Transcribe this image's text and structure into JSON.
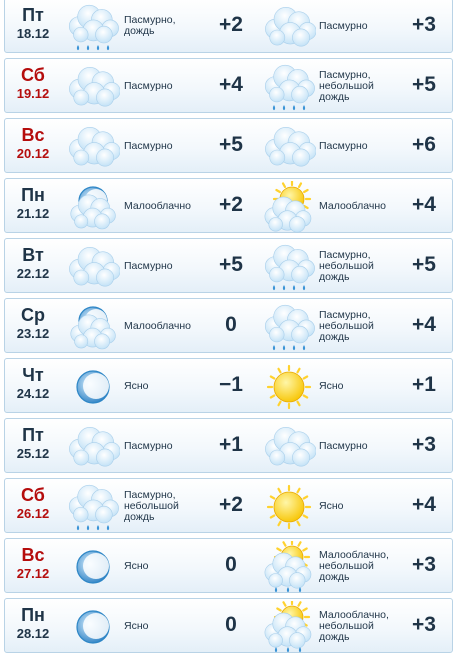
{
  "days": [
    {
      "day": "Пт",
      "date": "18.12",
      "weekend": false,
      "night": {
        "icon": "overcast-rain-icon",
        "desc": "Пасмурно,\nдождь",
        "temp": "+2"
      },
      "daytime": {
        "icon": "overcast-icon",
        "desc": "Пасмурно",
        "temp": "+3"
      }
    },
    {
      "day": "Сб",
      "date": "19.12",
      "weekend": true,
      "night": {
        "icon": "overcast-icon",
        "desc": "Пасмурно",
        "temp": "+4"
      },
      "daytime": {
        "icon": "overcast-rain-icon",
        "desc": "Пасмурно,\nнебольшой\nдождь",
        "temp": "+5"
      }
    },
    {
      "day": "Вс",
      "date": "20.12",
      "weekend": true,
      "night": {
        "icon": "overcast-icon",
        "desc": "Пасмурно",
        "temp": "+5"
      },
      "daytime": {
        "icon": "overcast-icon",
        "desc": "Пасмурно",
        "temp": "+6"
      }
    },
    {
      "day": "Пн",
      "date": "21.12",
      "weekend": false,
      "night": {
        "icon": "moon-cloud-icon",
        "desc": "Малооблачно",
        "temp": "+2"
      },
      "daytime": {
        "icon": "sun-cloud-icon",
        "desc": "Малооблачно",
        "temp": "+4"
      }
    },
    {
      "day": "Вт",
      "date": "22.12",
      "weekend": false,
      "night": {
        "icon": "overcast-icon",
        "desc": "Пасмурно",
        "temp": "+5"
      },
      "daytime": {
        "icon": "overcast-rain-icon",
        "desc": "Пасмурно,\nнебольшой\nдождь",
        "temp": "+5"
      }
    },
    {
      "day": "Ср",
      "date": "23.12",
      "weekend": false,
      "night": {
        "icon": "moon-cloud-icon",
        "desc": "Малооблачно",
        "temp": "0"
      },
      "daytime": {
        "icon": "overcast-rain-icon",
        "desc": "Пасмурно,\nнебольшой\nдождь",
        "temp": "+4"
      }
    },
    {
      "day": "Чт",
      "date": "24.12",
      "weekend": false,
      "night": {
        "icon": "moon-icon",
        "desc": "Ясно",
        "temp": "−1"
      },
      "daytime": {
        "icon": "sun-icon",
        "desc": "Ясно",
        "temp": "+1"
      }
    },
    {
      "day": "Пт",
      "date": "25.12",
      "weekend": false,
      "night": {
        "icon": "overcast-icon",
        "desc": "Пасмурно",
        "temp": "+1"
      },
      "daytime": {
        "icon": "overcast-icon",
        "desc": "Пасмурно",
        "temp": "+3"
      }
    },
    {
      "day": "Сб",
      "date": "26.12",
      "weekend": true,
      "night": {
        "icon": "overcast-rain-icon",
        "desc": "Пасмурно,\nнебольшой\nдождь",
        "temp": "+2"
      },
      "daytime": {
        "icon": "sun-icon",
        "desc": "Ясно",
        "temp": "+4"
      }
    },
    {
      "day": "Вс",
      "date": "27.12",
      "weekend": true,
      "night": {
        "icon": "moon-icon",
        "desc": "Ясно",
        "temp": "0"
      },
      "daytime": {
        "icon": "sun-cloud-rain-icon",
        "desc": "Малооблачно,\nнебольшой\nдождь",
        "temp": "+3"
      }
    },
    {
      "day": "Пн",
      "date": "28.12",
      "weekend": false,
      "night": {
        "icon": "moon-icon",
        "desc": "Ясно",
        "temp": "0"
      },
      "daytime": {
        "icon": "sun-cloud-rain-icon",
        "desc": "Малооблачно,\nнебольшой\nдождь",
        "temp": "+3"
      }
    }
  ],
  "colors": {
    "weekend": "#b50d0d",
    "text": "#1f3447",
    "row_border": "#b9d3e6",
    "cloud": "#cfe6f7",
    "sun": "#f7c400",
    "rain": "#3a93d6"
  }
}
